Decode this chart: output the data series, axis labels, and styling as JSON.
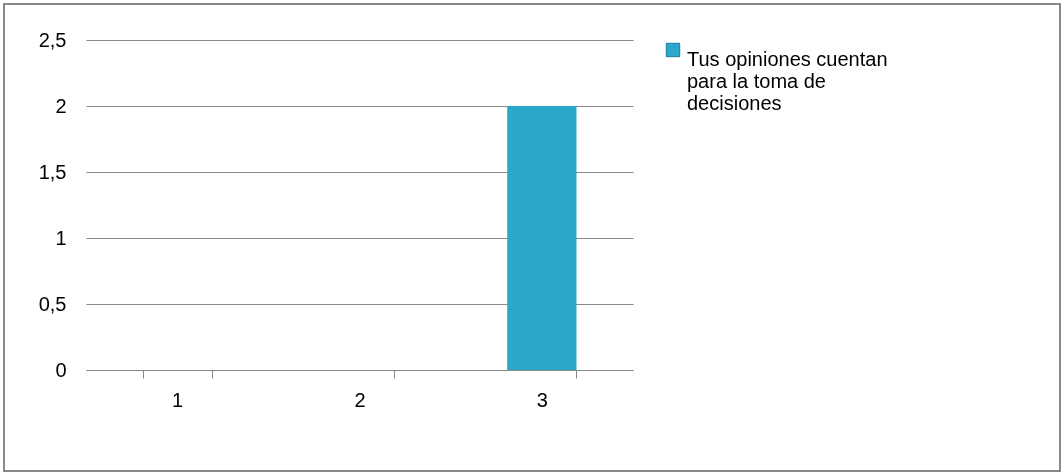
{
  "chart_data": {
    "type": "bar",
    "categories": [
      "1",
      "2",
      "3"
    ],
    "series": [
      {
        "name": "Tus opiniones cuentan para la toma de decisiones",
        "color": "#2aa8cc",
        "values": [
          0,
          0,
          2
        ]
      }
    ],
    "ylim": [
      0,
      2.5
    ],
    "yticks": [
      0,
      {
        "value": 0.5,
        "label": "0,5"
      },
      1,
      {
        "value": 1.5,
        "label": "1,5"
      },
      2,
      {
        "value": 2.5,
        "label": "2,5"
      }
    ],
    "grid": "y",
    "legend": "right"
  }
}
